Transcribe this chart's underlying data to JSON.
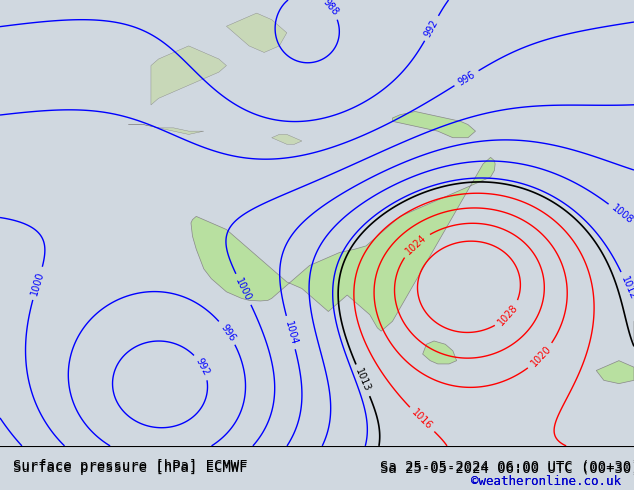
{
  "title_left": "Surface pressure [hPa] ECMWF",
  "title_right": "Sa 25-05-2024 06:00 UTC (00+30)",
  "credit": "©weatheronline.co.uk",
  "background_ocean": "#c8d8e8",
  "background_land": "#c8e8c0",
  "land_color": "#b8e0a8",
  "fig_bg": "#d0d8e0",
  "bottom_bar_color": "#e8e8e8",
  "title_color": "#000000",
  "credit_color": "#0000cc",
  "font_size_title": 10,
  "font_size_credit": 9
}
